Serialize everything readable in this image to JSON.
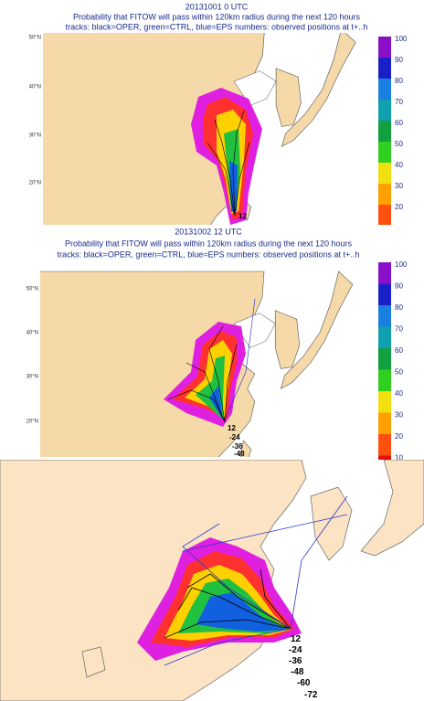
{
  "panels": [
    {
      "date": "20131001 0 UTC",
      "title": "Probability that FITOW will pass within 120km radius during the next 120 hours",
      "legend": "tracks: black=OPER, green=CTRL, blue=EPS numbers: observed positions at t+..h",
      "lat_labels": [
        "50°N",
        "40°N",
        "30°N",
        "20°N"
      ],
      "colorbar_labels": [
        100,
        90,
        80,
        70,
        60,
        50,
        40,
        30,
        20
      ],
      "position_labels": [
        "12"
      ]
    },
    {
      "date": "20131002 12 UTC",
      "title": "Probability that FITOW will pass within 120km radius during the next 120 hours",
      "legend": "tracks: black=OPER, green=CTRL, blue=EPS numbers: observed positions at t+..h",
      "lat_labels": [
        "50°N",
        "40°N",
        "30°N",
        "20°N"
      ],
      "colorbar_labels": [
        100,
        90,
        80,
        70,
        60,
        50,
        40,
        30,
        20,
        10
      ],
      "position_labels": [
        "12",
        "-24",
        "-36",
        "-48"
      ]
    },
    {
      "position_labels": [
        "12",
        "-24",
        "-36",
        "-48",
        "-60",
        "-72"
      ]
    }
  ]
}
